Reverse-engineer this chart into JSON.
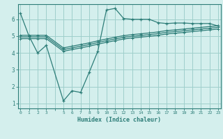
{
  "xlabel": "Humidex (Indice chaleur)",
  "bg_color": "#d4efed",
  "grid_color": "#9fcfcb",
  "line_color": "#2d7d78",
  "ylim": [
    0.7,
    6.9
  ],
  "xlim": [
    -0.3,
    23.3
  ],
  "line1_x": [
    0,
    1,
    2,
    3,
    5,
    6,
    7,
    8,
    9,
    10,
    11,
    12,
    13,
    14,
    15,
    16,
    17,
    18,
    19,
    20,
    21,
    22,
    23
  ],
  "line1_y": [
    6.35,
    5.0,
    4.0,
    4.45,
    1.15,
    1.75,
    1.65,
    2.85,
    4.1,
    6.55,
    6.65,
    6.05,
    6.0,
    6.0,
    6.0,
    5.8,
    5.75,
    5.78,
    5.78,
    5.75,
    5.75,
    5.75,
    5.6
  ],
  "line2_x": [
    0,
    1,
    2,
    3,
    5,
    6,
    7,
    8,
    9,
    10,
    11,
    12,
    13,
    14,
    15,
    16,
    17,
    18,
    19,
    20,
    21,
    22,
    23
  ],
  "line2_y": [
    5.05,
    5.05,
    5.05,
    5.05,
    4.3,
    4.4,
    4.5,
    4.6,
    4.72,
    4.83,
    4.93,
    5.03,
    5.09,
    5.14,
    5.19,
    5.25,
    5.33,
    5.37,
    5.42,
    5.47,
    5.52,
    5.57,
    5.62
  ],
  "line3_x": [
    0,
    1,
    2,
    3,
    5,
    6,
    7,
    8,
    9,
    10,
    11,
    12,
    13,
    14,
    15,
    16,
    17,
    18,
    19,
    20,
    21,
    22,
    23
  ],
  "line3_y": [
    4.95,
    4.95,
    4.95,
    4.95,
    4.2,
    4.3,
    4.4,
    4.5,
    4.62,
    4.73,
    4.83,
    4.93,
    4.99,
    5.04,
    5.09,
    5.15,
    5.23,
    5.27,
    5.32,
    5.37,
    5.42,
    5.47,
    5.52
  ],
  "line4_x": [
    0,
    1,
    2,
    3,
    5,
    6,
    7,
    8,
    9,
    10,
    11,
    12,
    13,
    14,
    15,
    16,
    17,
    18,
    19,
    20,
    21,
    22,
    23
  ],
  "line4_y": [
    4.85,
    4.85,
    4.85,
    4.85,
    4.1,
    4.2,
    4.3,
    4.4,
    4.52,
    4.63,
    4.73,
    4.83,
    4.89,
    4.94,
    4.99,
    5.05,
    5.13,
    5.17,
    5.22,
    5.27,
    5.32,
    5.37,
    5.42
  ]
}
